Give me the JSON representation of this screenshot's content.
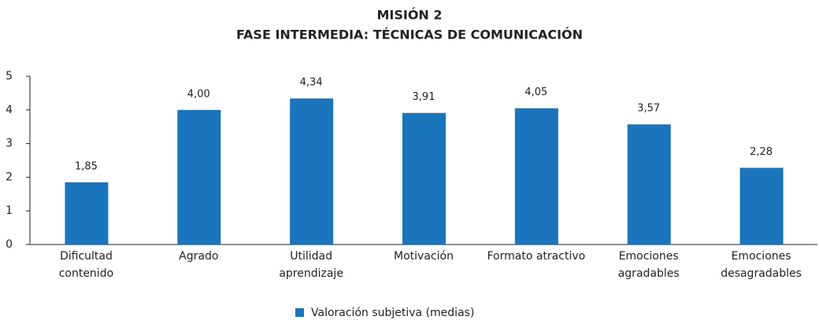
{
  "chart_data": {
    "type": "bar",
    "title": "MISIÓN 2",
    "subtitle": "FASE INTERMEDIA: TÉCNICAS DE COMUNICACIÓN",
    "categories": [
      "Dificultad contenido",
      "Agrado",
      "Utilidad aprendizaje",
      "Motivación",
      "Formato atractivo",
      "Emociones agradables",
      "Emociones desagradables"
    ],
    "series": [
      {
        "name": "Valoración subjetiva (medias)",
        "color": "#1a75bc",
        "values": [
          1.85,
          4.0,
          4.34,
          3.91,
          4.05,
          3.57,
          2.28
        ],
        "value_labels": [
          "1,85",
          "4,00",
          "4,34",
          "3,91",
          "4,05",
          "3,57",
          "2,28"
        ]
      }
    ],
    "ylim": [
      0,
      5
    ],
    "yticks": [
      0,
      1,
      2,
      3,
      4,
      5
    ],
    "grid": false,
    "legend": "bottom"
  }
}
